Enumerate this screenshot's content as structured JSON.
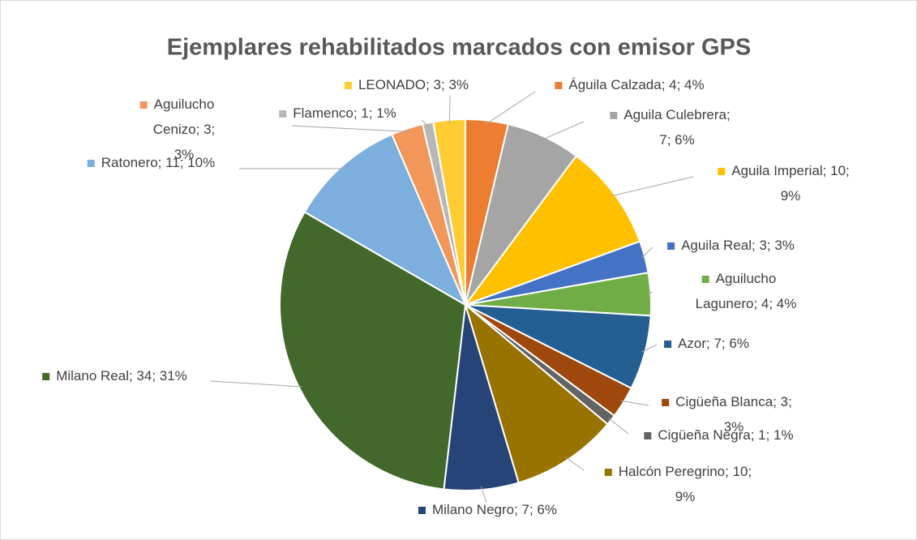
{
  "chart_data": {
    "type": "pie",
    "title": "Ejemplares rehabilitados marcados con emisor GPS",
    "values": [
      4,
      7,
      10,
      3,
      4,
      7,
      3,
      1,
      10,
      7,
      34,
      11,
      3,
      1,
      3
    ],
    "value_labels": [
      "Águila Calzada; 4; 4%",
      "Aguila Culebrera; 7; 6%",
      "Aguila Imperial; 10; 9%",
      "Aguila Real; 3; 3%",
      "Aguilucho Lagunero; 4; 4%",
      "Azor; 7; 6%",
      "Cigüeña Blanca; 3; 3%",
      "Cigüeña Negra; 1; 1%",
      "Halcón Peregrino; 10; 9%",
      "Milano Negro; 7; 6%",
      "Milano Real; 34; 31%",
      "Ratonero; 11; 10%",
      "Aguilucho Cenizo; 3; 3%",
      "Flamenco; 1; 1%",
      "LEONADO; 3; 3%"
    ],
    "colors": [
      "#ED7D31",
      "#A5A5A5",
      "#FFC000",
      "#4472C4",
      "#70AD47",
      "#255E91",
      "#9E480E",
      "#636363",
      "#997300",
      "#264478",
      "#43682B",
      "#7CAFDD",
      "#F1975A",
      "#B7B7B7",
      "#FFCD33"
    ]
  }
}
